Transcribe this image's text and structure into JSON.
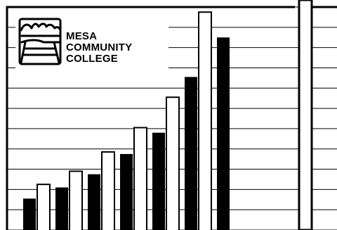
{
  "logo": {
    "line1": "MESA",
    "line2": "COMMUNITY",
    "line3": "COLLEGE"
  },
  "colors": {
    "ink": "#000000",
    "paper": "#ffffff"
  },
  "icons": {
    "logo_mark": "mesa-landscape-icon"
  },
  "chart_data": {
    "type": "bar",
    "series": [
      {
        "values": [
          15.5,
          21,
          27.5,
          37.5,
          48,
          75.5,
          95
        ]
      },
      {
        "values": [
          22.5,
          29,
          38.5,
          50.5,
          65.5,
          107.5
        ]
      }
    ],
    "ylim": [
      0,
      110
    ],
    "grid": true,
    "legend": "none"
  }
}
